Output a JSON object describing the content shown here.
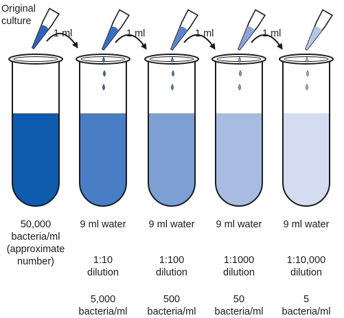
{
  "original_label": [
    "Original",
    "culture"
  ],
  "transfer_label": "1 ml",
  "colors": {
    "outline": "#1a1a1a",
    "pipette_tips": [
      "#2f63b8",
      "#3a6fc0",
      "#5c86c9",
      "#8ca5d8",
      "#b6c6e7"
    ],
    "liquids": [
      "#0f5cae",
      "#4a7ec4",
      "#7d9fd4",
      "#a8bce2",
      "#d3dcf0"
    ],
    "drops": [
      "#2f63b8",
      "#4f7fc6",
      "#7a9cd4",
      "#a0b5de"
    ]
  },
  "tubes": [
    {
      "contents": [
        "50,000",
        "bacteria/ml",
        "(approximate",
        "number)"
      ]
    },
    {
      "contents": [
        "9 ml water"
      ],
      "dilution": [
        "1:10",
        "dilution"
      ],
      "result": [
        "5,000",
        "bacteria/ml"
      ]
    },
    {
      "contents": [
        "9 ml water"
      ],
      "dilution": [
        "1:100",
        "dilution"
      ],
      "result": [
        "500",
        "bacteria/ml"
      ]
    },
    {
      "contents": [
        "9 ml water"
      ],
      "dilution": [
        "1:1000",
        "dilution"
      ],
      "result": [
        "50",
        "bacteria/ml"
      ]
    },
    {
      "contents": [
        "9 ml water"
      ],
      "dilution": [
        "1:10,000",
        "dilution"
      ],
      "result": [
        "5",
        "bacteria/ml"
      ]
    }
  ]
}
